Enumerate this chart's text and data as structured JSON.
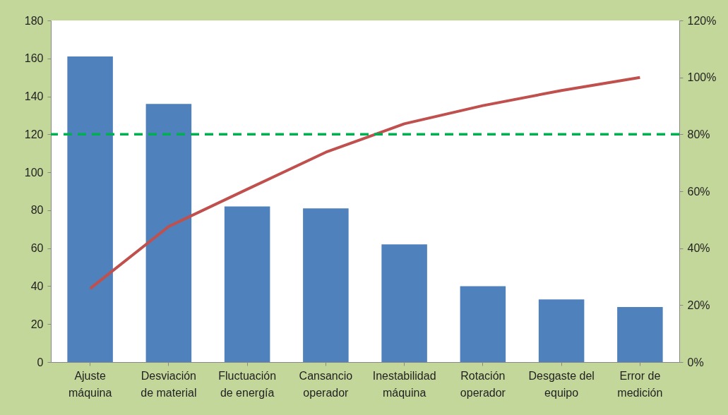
{
  "chart_data": {
    "type": "bar",
    "categories": [
      "Ajuste máquina",
      "Desviación de material",
      "Fluctuación de energía",
      "Cansancio operador",
      "Inestabilidad máquina",
      "Rotación operador",
      "Desgaste del equipo",
      "Error de medición"
    ],
    "series": [
      {
        "color": "#4f81bd",
        "values": [
          161,
          136,
          82,
          81,
          62,
          40,
          33,
          29
        ]
      },
      {
        "type": "line",
        "axis": "y2",
        "color": "#c0504d",
        "values": [
          25.8,
          47.6,
          60.7,
          73.7,
          83.7,
          90.1,
          95.4,
          100
        ]
      }
    ],
    "ylim": [
      0,
      180
    ],
    "yticks": [
      0,
      20,
      40,
      60,
      80,
      100,
      120,
      140,
      160,
      180
    ],
    "y2lim": [
      0,
      120
    ],
    "y2ticks": [
      {
        "value": 0,
        "label": "0%"
      },
      {
        "value": 20,
        "label": "20%"
      },
      {
        "value": 40,
        "label": "40%"
      },
      {
        "value": 60,
        "label": "60%"
      },
      {
        "value": 80,
        "label": "80%"
      },
      {
        "value": 100,
        "label": "100%"
      },
      {
        "value": 120,
        "label": "120%"
      }
    ],
    "ref_lines": [
      {
        "axis": "y2",
        "value": 80,
        "color": "#00b050",
        "line_style": "dashed"
      }
    ]
  }
}
